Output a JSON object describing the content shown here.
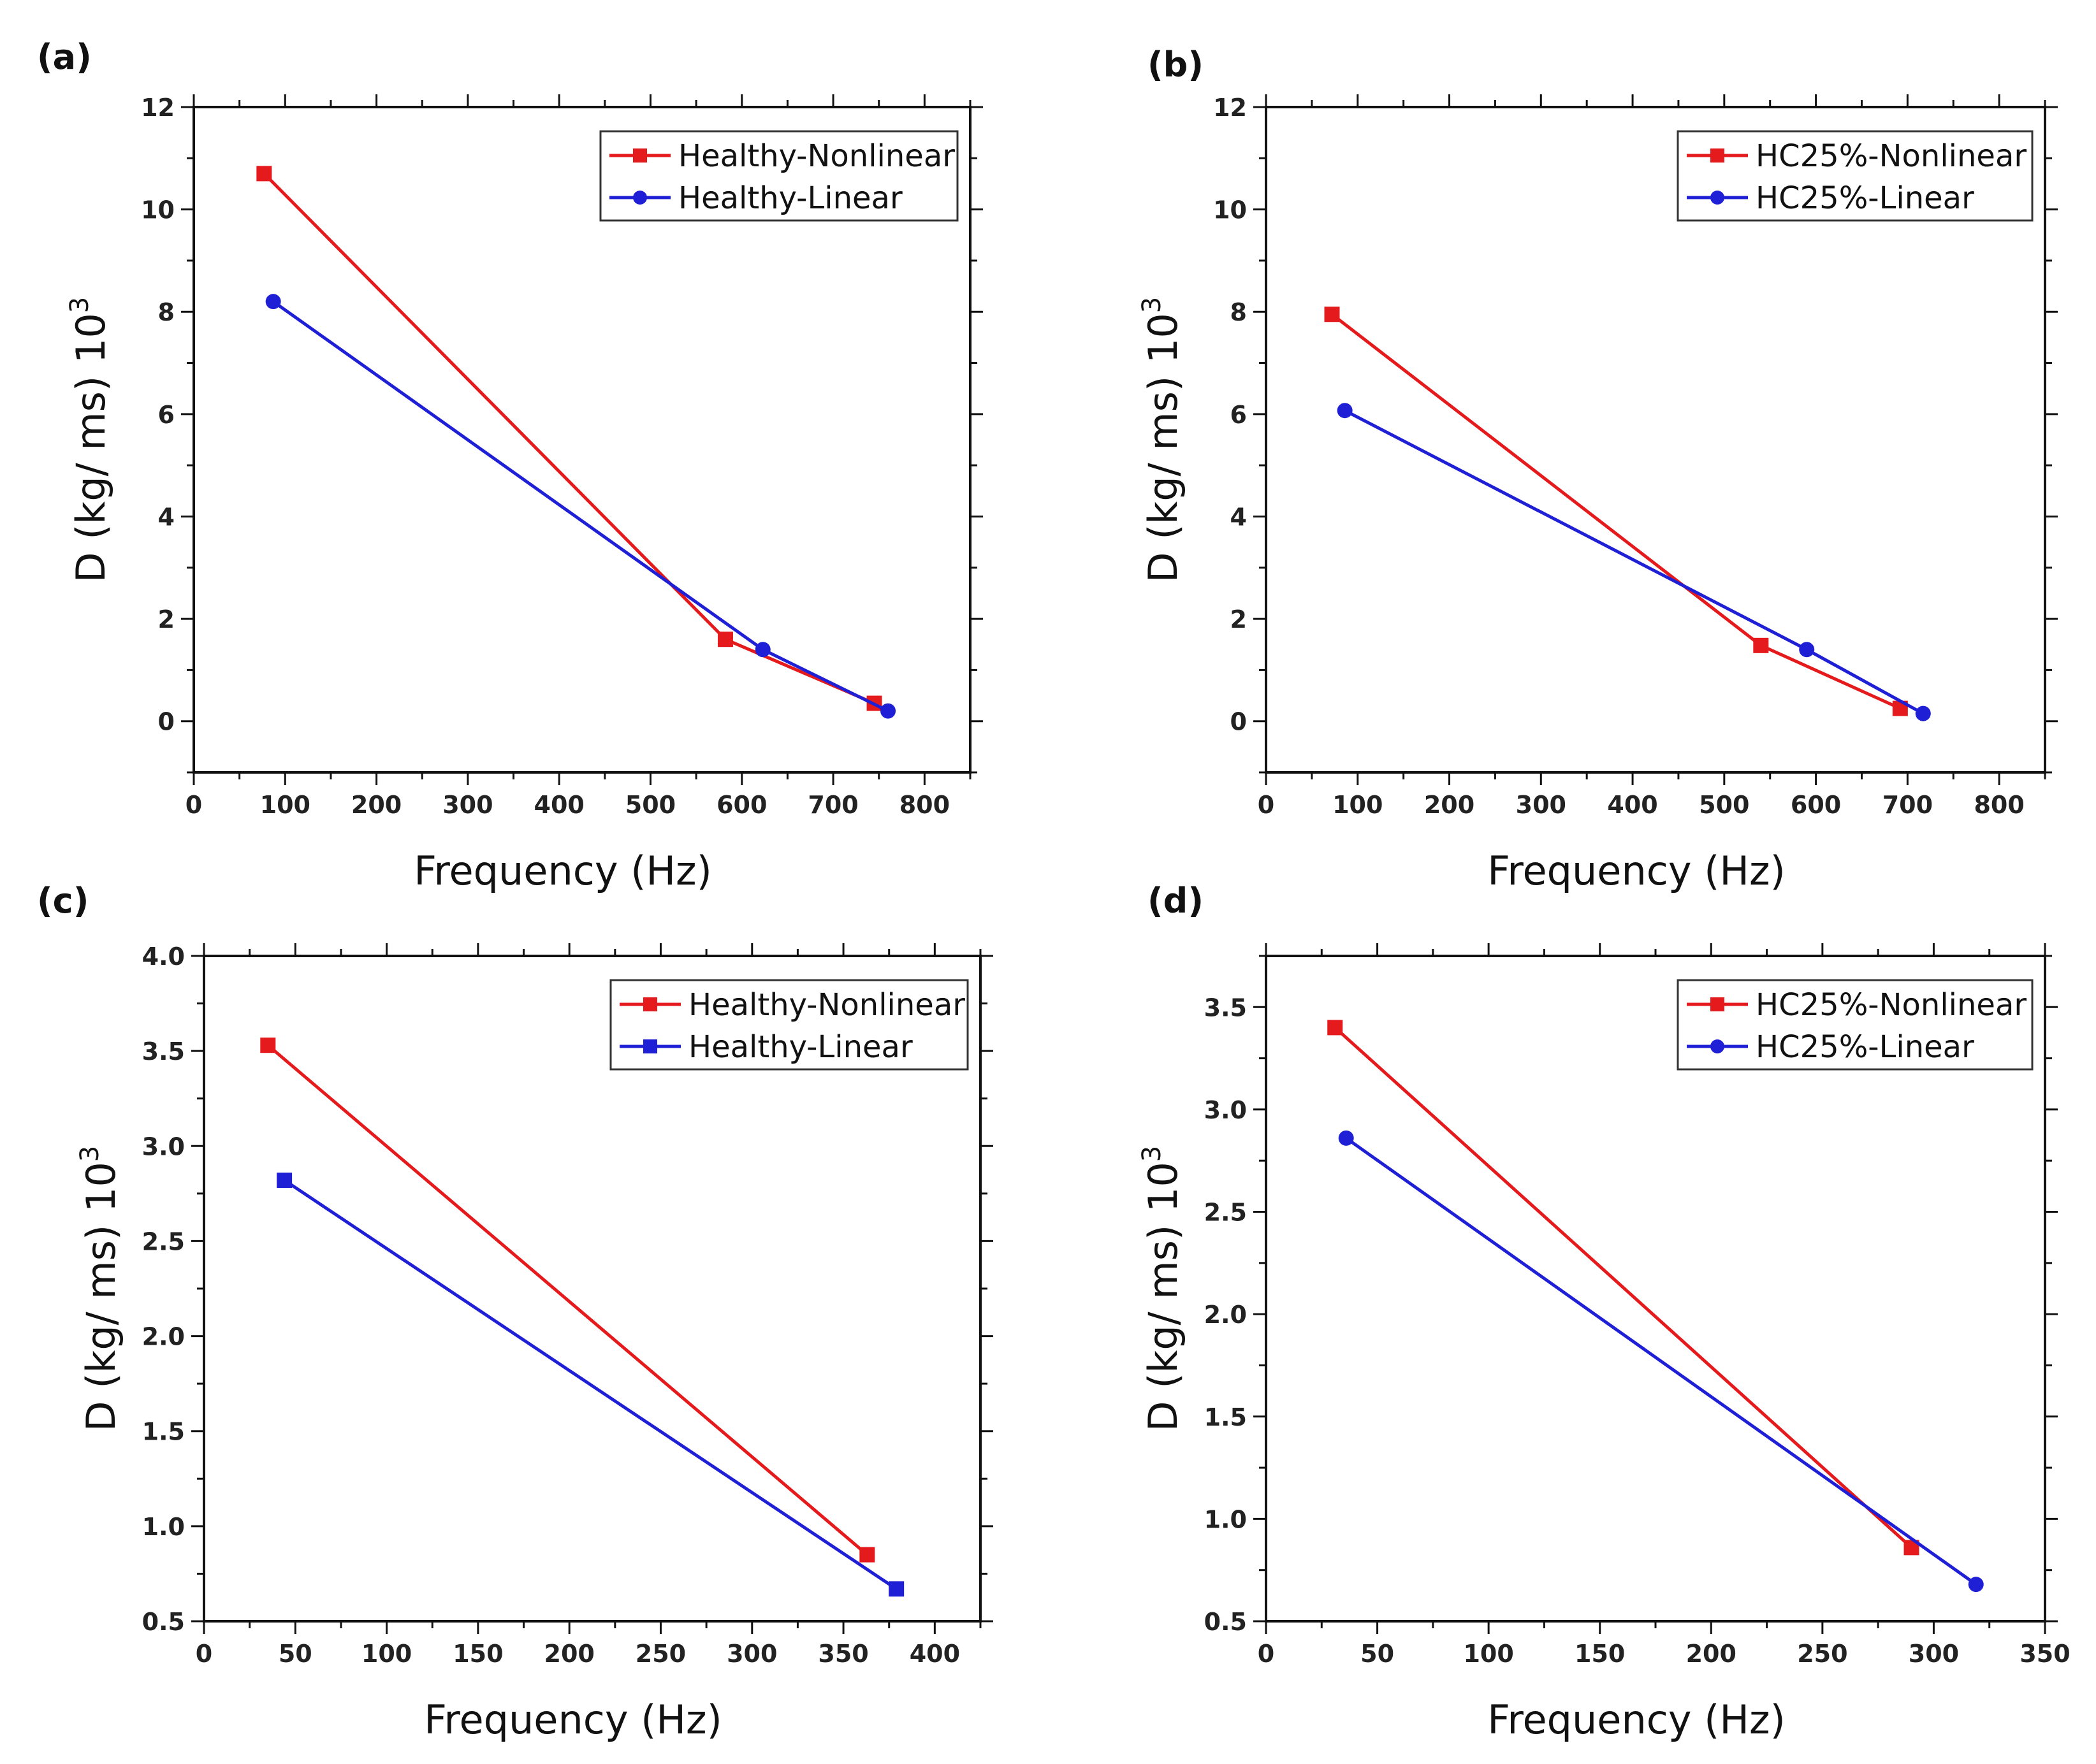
{
  "chart_data": [
    {
      "panel_label": "(a)",
      "type": "line",
      "xlabel": "Frequency (Hz)",
      "ylabel": "D (kg/ ms) 10",
      "ylabel_sup": "3",
      "xlim": [
        0,
        850
      ],
      "ylim": [
        -1,
        12
      ],
      "xticks": [
        0,
        100,
        200,
        300,
        400,
        500,
        600,
        700,
        800
      ],
      "yticks": [
        0,
        2,
        4,
        6,
        8,
        10,
        12
      ],
      "tick_format": "int",
      "legend_position": "top-right",
      "series": [
        {
          "name": "Healthy-Nonlinear",
          "color": "#e41a1c",
          "marker": "square",
          "x": [
            77,
            582,
            745
          ],
          "y": [
            10.7,
            1.6,
            0.35
          ]
        },
        {
          "name": "Healthy-Linear",
          "color": "#1f1fd6",
          "marker": "circle",
          "x": [
            87,
            623,
            760
          ],
          "y": [
            8.2,
            1.4,
            0.2
          ]
        }
      ]
    },
    {
      "panel_label": "(b)",
      "type": "line",
      "xlabel": "Frequency (Hz)",
      "ylabel": "D (kg/ ms) 10",
      "ylabel_sup": "3",
      "xlim": [
        0,
        850
      ],
      "ylim": [
        -1,
        12
      ],
      "xticks": [
        0,
        100,
        200,
        300,
        400,
        500,
        600,
        700,
        800
      ],
      "yticks": [
        0,
        2,
        4,
        6,
        8,
        10,
        12
      ],
      "tick_format": "int",
      "legend_position": "top-right",
      "series": [
        {
          "name": "HC25%-Nonlinear",
          "color": "#e41a1c",
          "marker": "square",
          "x": [
            72,
            540,
            692
          ],
          "y": [
            7.95,
            1.48,
            0.25
          ]
        },
        {
          "name": "HC25%-Linear",
          "color": "#1f1fd6",
          "marker": "circle",
          "x": [
            86,
            590,
            717
          ],
          "y": [
            6.07,
            1.4,
            0.15
          ]
        }
      ]
    },
    {
      "panel_label": "(c)",
      "type": "line",
      "xlabel": "Frequency (Hz)",
      "ylabel": "D (kg/ ms) 10",
      "ylabel_sup": "3",
      "xlim": [
        0,
        425
      ],
      "ylim": [
        0.5,
        4.0
      ],
      "xticks": [
        0,
        50,
        100,
        150,
        200,
        250,
        300,
        350,
        400
      ],
      "yticks": [
        0.5,
        1.0,
        1.5,
        2.0,
        2.5,
        3.0,
        3.5,
        4.0
      ],
      "tick_format": "1dp",
      "legend_position": "top-right",
      "series": [
        {
          "name": "Healthy-Nonlinear",
          "color": "#e41a1c",
          "marker": "square",
          "x": [
            35,
            363
          ],
          "y": [
            3.53,
            0.85
          ]
        },
        {
          "name": "Healthy-Linear",
          "color": "#1f1fd6",
          "marker": "square",
          "x": [
            44,
            379
          ],
          "y": [
            2.82,
            0.67
          ]
        }
      ]
    },
    {
      "panel_label": "(d)",
      "type": "line",
      "xlabel": "Frequency (Hz)",
      "ylabel": "D (kg/ ms) 10",
      "ylabel_sup": "3",
      "xlim": [
        0,
        350
      ],
      "ylim": [
        0.5,
        3.75
      ],
      "xticks": [
        0,
        50,
        100,
        150,
        200,
        250,
        300,
        350
      ],
      "yticks": [
        0.5,
        1.0,
        1.5,
        2.0,
        2.5,
        3.0,
        3.5
      ],
      "tick_format": "1dp",
      "legend_position": "top-right",
      "series": [
        {
          "name": "HC25%-Nonlinear",
          "color": "#e41a1c",
          "marker": "square",
          "x": [
            31,
            290
          ],
          "y": [
            3.4,
            0.86
          ]
        },
        {
          "name": "HC25%-Linear",
          "color": "#1f1fd6",
          "marker": "circle",
          "x": [
            36,
            319
          ],
          "y": [
            2.86,
            0.68
          ]
        }
      ]
    }
  ]
}
